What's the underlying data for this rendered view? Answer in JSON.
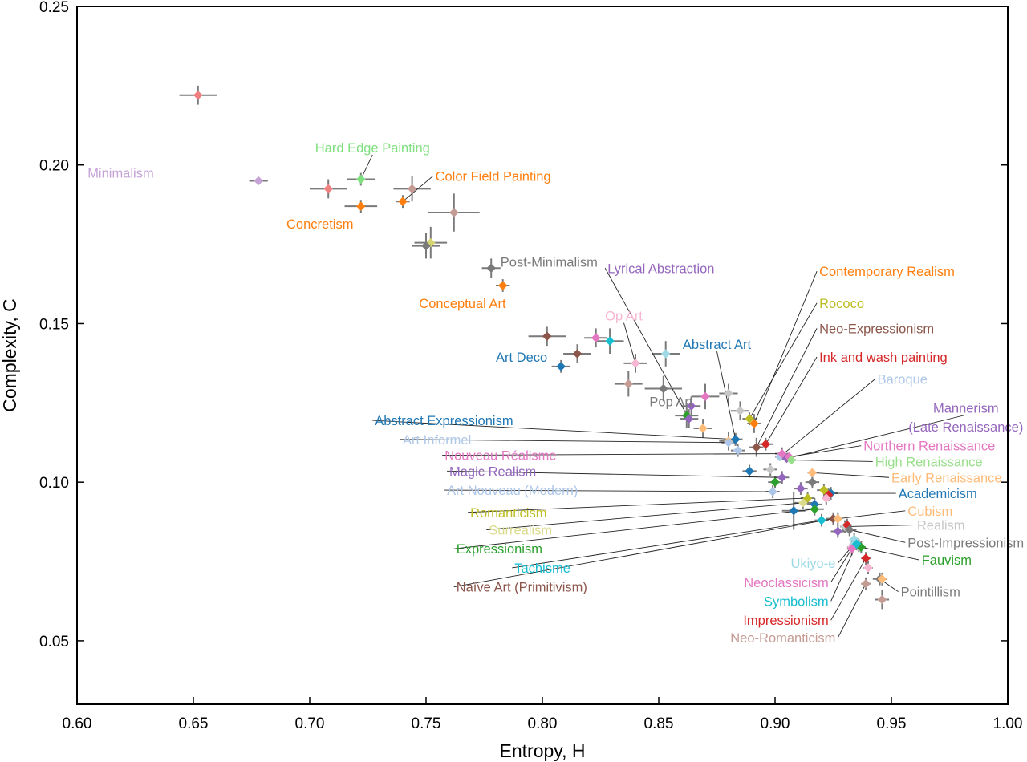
{
  "chart_data": {
    "type": "scatter",
    "title": "",
    "xlabel": "Entropy, H",
    "ylabel": "Complexity, C",
    "xlim": [
      0.6,
      1.0
    ],
    "ylim": [
      0.03,
      0.25
    ],
    "xticks": [
      "0.60",
      "0.65",
      "0.70",
      "0.75",
      "0.80",
      "0.85",
      "0.90",
      "0.95",
      "1.00"
    ],
    "yticks": [
      "0.05",
      "0.10",
      "0.15",
      "0.20",
      "0.25"
    ],
    "grid": false,
    "legend": "none",
    "points": [
      {
        "name": "",
        "x": 0.652,
        "y": 0.222,
        "ex": 0.008,
        "ey": 0.003,
        "color": "#f08080"
      },
      {
        "name": "Minimalism",
        "x": 0.678,
        "y": 0.195,
        "ex": 0.004,
        "ey": 0.001,
        "color": "#c5a3d6",
        "label": {
          "x": 0.633,
          "y": 0.1975,
          "dir": "left"
        }
      },
      {
        "name": "Hard Edge Painting",
        "x": 0.722,
        "y": 0.1955,
        "ex": 0.006,
        "ey": 0.002,
        "color": "#7fe07f",
        "label": {
          "x": 0.727,
          "y": 0.2055,
          "dir": "center"
        },
        "leader": true
      },
      {
        "name": "",
        "x": 0.708,
        "y": 0.1925,
        "ex": 0.008,
        "ey": 0.003,
        "color": "#f08080"
      },
      {
        "name": "",
        "x": 0.744,
        "y": 0.1925,
        "ex": 0.008,
        "ey": 0.004,
        "color": "#c49c94"
      },
      {
        "name": "Color Field Painting",
        "x": 0.74,
        "y": 0.1885,
        "ex": 0.003,
        "ey": 0.002,
        "color": "#ff7f0e",
        "label": {
          "x": 0.754,
          "y": 0.1965,
          "dir": "right"
        },
        "leader": true
      },
      {
        "name": "Concretism",
        "x": 0.722,
        "y": 0.187,
        "ex": 0.007,
        "ey": 0.002,
        "color": "#ff7f0e",
        "label": {
          "x": 0.69,
          "y": 0.1815,
          "dir": "right"
        }
      },
      {
        "name": "",
        "x": 0.762,
        "y": 0.185,
        "ex": 0.011,
        "ey": 0.006,
        "color": "#c49c94"
      },
      {
        "name": "",
        "x": 0.752,
        "y": 0.1755,
        "ex": 0.007,
        "ey": 0.005,
        "color": "#d4d470"
      },
      {
        "name": "",
        "x": 0.75,
        "y": 0.1745,
        "ex": 0.006,
        "ey": 0.004,
        "color": "#7a7a7a"
      },
      {
        "name": "Post-Minimalism",
        "x": 0.778,
        "y": 0.1675,
        "ex": 0.004,
        "ey": 0.003,
        "color": "#7a7a7a",
        "label": {
          "x": 0.782,
          "y": 0.1695,
          "dir": "right"
        }
      },
      {
        "name": "Conceptual Art",
        "x": 0.783,
        "y": 0.162,
        "ex": 0.003,
        "ey": 0.002,
        "color": "#ff7f0e",
        "label": {
          "x": 0.747,
          "y": 0.1565,
          "dir": "right"
        }
      },
      {
        "name": "",
        "x": 0.802,
        "y": 0.146,
        "ex": 0.008,
        "ey": 0.003,
        "color": "#8c564b"
      },
      {
        "name": "",
        "x": 0.823,
        "y": 0.1455,
        "ex": 0.005,
        "ey": 0.003,
        "color": "#e377c2"
      },
      {
        "name": "",
        "x": 0.829,
        "y": 0.1445,
        "ex": 0.006,
        "ey": 0.004,
        "color": "#17becf"
      },
      {
        "name": "",
        "x": 0.853,
        "y": 0.1405,
        "ex": 0.006,
        "ey": 0.004,
        "color": "#9edae5"
      },
      {
        "name": "",
        "x": 0.815,
        "y": 0.1405,
        "ex": 0.006,
        "ey": 0.003,
        "color": "#8c564b"
      },
      {
        "name": "Op Art",
        "x": 0.84,
        "y": 0.1375,
        "ex": 0.005,
        "ey": 0.003,
        "color": "#f7b6d2",
        "label": {
          "x": 0.835,
          "y": 0.1525,
          "dir": "center"
        },
        "leader": true
      },
      {
        "name": "Art Deco",
        "x": 0.808,
        "y": 0.1365,
        "ex": 0.004,
        "ey": 0.002,
        "color": "#1f77b4",
        "label": {
          "x": 0.78,
          "y": 0.1395,
          "dir": "right"
        }
      },
      {
        "name": "",
        "x": 0.837,
        "y": 0.131,
        "ex": 0.006,
        "ey": 0.004,
        "color": "#c49c94"
      },
      {
        "name": "Pop Art",
        "x": 0.852,
        "y": 0.1295,
        "ex": 0.008,
        "ey": 0.004,
        "color": "#7a7a7a",
        "label": {
          "x": 0.846,
          "y": 0.1255,
          "dir": "right"
        }
      },
      {
        "name": "",
        "x": 0.87,
        "y": 0.127,
        "ex": 0.006,
        "ey": 0.004,
        "color": "#e377c2"
      },
      {
        "name": "",
        "x": 0.88,
        "y": 0.128,
        "ex": 0.004,
        "ey": 0.003,
        "color": "#c7c7c7"
      },
      {
        "name": "",
        "x": 0.864,
        "y": 0.124,
        "ex": 0.004,
        "ey": 0.003,
        "color": "#9467bd"
      },
      {
        "name": "",
        "x": 0.885,
        "y": 0.1225,
        "ex": 0.004,
        "ey": 0.003,
        "color": "#c7c7c7"
      },
      {
        "name": "",
        "x": 0.862,
        "y": 0.121,
        "ex": 0.005,
        "ey": 0.004,
        "color": "#2ca02c"
      },
      {
        "name": "Lyrical Abstraction",
        "x": 0.863,
        "y": 0.12,
        "ex": 0.004,
        "ey": 0.003,
        "color": "#9467bd",
        "label": {
          "x": 0.828,
          "y": 0.1675,
          "dir": "right"
        },
        "leader": true
      },
      {
        "name": "Contemporary Realism",
        "x": 0.891,
        "y": 0.1185,
        "ex": 0.003,
        "ey": 0.003,
        "color": "#ff7f0e",
        "label": {
          "x": 0.919,
          "y": 0.1665,
          "dir": "right"
        },
        "leader": true
      },
      {
        "name": "Rococo",
        "x": 0.889,
        "y": 0.12,
        "ex": 0.003,
        "ey": 0.002,
        "color": "#bcbd22",
        "label": {
          "x": 0.919,
          "y": 0.1565,
          "dir": "right"
        },
        "leader": true
      },
      {
        "name": "",
        "x": 0.869,
        "y": 0.117,
        "ex": 0.004,
        "ey": 0.003,
        "color": "#ffbb78"
      },
      {
        "name": "Neo-Expressionism",
        "x": 0.892,
        "y": 0.111,
        "ex": 0.003,
        "ey": 0.003,
        "color": "#8c564b",
        "label": {
          "x": 0.919,
          "y": 0.1485,
          "dir": "right"
        },
        "leader": true
      },
      {
        "name": "Ink and wash painting",
        "x": 0.896,
        "y": 0.112,
        "ex": 0.003,
        "ey": 0.002,
        "color": "#d62728",
        "label": {
          "x": 0.919,
          "y": 0.1395,
          "dir": "right"
        },
        "leader": true
      },
      {
        "name": "Abstract Art",
        "x": 0.883,
        "y": 0.1135,
        "ex": 0.003,
        "ey": 0.002,
        "color": "#1f77b4",
        "label": {
          "x": 0.875,
          "y": 0.1435,
          "dir": "center"
        },
        "leader": true
      },
      {
        "name": "",
        "x": 0.88,
        "y": 0.113,
        "ex": 0.004,
        "ey": 0.003,
        "color": "#ffbb78"
      },
      {
        "name": "Baroque",
        "x": 0.902,
        "y": 0.108,
        "ex": 0.002,
        "ey": 0.001,
        "color": "#aec7e8",
        "label": {
          "x": 0.944,
          "y": 0.1325,
          "dir": "right"
        },
        "leader": true
      },
      {
        "name": "Mannerism",
        "x": 0.905,
        "y": 0.1075,
        "ex": 0.002,
        "ey": 0.001,
        "color": "#9467bd",
        "label": {
          "x": 0.982,
          "y": 0.1235,
          "dir": "center"
        },
        "leader": true,
        "label2": "(Late Renaissance)",
        "label2y": 0.1175
      },
      {
        "name": "Northern Renaissance",
        "x": 0.906,
        "y": 0.108,
        "ex": 0.002,
        "ey": 0.001,
        "color": "#e377c2",
        "label": {
          "x": 0.938,
          "y": 0.1115,
          "dir": "right"
        },
        "leader": true
      },
      {
        "name": "High Renaissance",
        "x": 0.907,
        "y": 0.107,
        "ex": 0.002,
        "ey": 0.001,
        "color": "#98df8a",
        "label": {
          "x": 0.943,
          "y": 0.1065,
          "dir": "right"
        },
        "leader": true
      },
      {
        "name": "Early Renaissance",
        "x": 0.916,
        "y": 0.103,
        "ex": 0.002,
        "ey": 0.001,
        "color": "#ffbb78",
        "label": {
          "x": 0.95,
          "y": 0.1015,
          "dir": "right"
        },
        "leader": true
      },
      {
        "name": "Abstract Expressionism",
        "x": 0.883,
        "y": 0.1135,
        "ex": 0.003,
        "ey": 0.002,
        "color": "#1f77b4",
        "label": {
          "x": 0.728,
          "y": 0.1195,
          "dir": "right"
        },
        "leader": true
      },
      {
        "name": "Art Informel",
        "x": 0.88,
        "y": 0.1125,
        "ex": 0.003,
        "ey": 0.002,
        "color": "#aec7e8",
        "label": {
          "x": 0.74,
          "y": 0.1135,
          "dir": "right"
        },
        "leader": true
      },
      {
        "name": "",
        "x": 0.884,
        "y": 0.11,
        "ex": 0.003,
        "ey": 0.002,
        "color": "#aec7e8"
      },
      {
        "name": "Nouveau Réalisme",
        "x": 0.903,
        "y": 0.109,
        "ex": 0.003,
        "ey": 0.002,
        "color": "#e377c2",
        "label": {
          "x": 0.758,
          "y": 0.1085,
          "dir": "right"
        },
        "leader": true
      },
      {
        "name": "Magic Realism",
        "x": 0.903,
        "y": 0.1015,
        "ex": 0.003,
        "ey": 0.002,
        "color": "#9467bd",
        "label": {
          "x": 0.76,
          "y": 0.1035,
          "dir": "right"
        },
        "leader": true
      },
      {
        "name": "",
        "x": 0.889,
        "y": 0.1035,
        "ex": 0.003,
        "ey": 0.002,
        "color": "#1f77b4"
      },
      {
        "name": "",
        "x": 0.898,
        "y": 0.104,
        "ex": 0.003,
        "ey": 0.002,
        "color": "#c7c7c7"
      },
      {
        "name": "",
        "x": 0.9,
        "y": 0.1,
        "ex": 0.003,
        "ey": 0.002,
        "color": "#2ca02c"
      },
      {
        "name": "Art Nouveau (Modern)",
        "x": 0.899,
        "y": 0.097,
        "ex": 0.003,
        "ey": 0.002,
        "color": "#aec7e8",
        "label": {
          "x": 0.759,
          "y": 0.0975,
          "dir": "right"
        },
        "leader": true
      },
      {
        "name": "",
        "x": 0.911,
        "y": 0.098,
        "ex": 0.003,
        "ey": 0.002,
        "color": "#9467bd"
      },
      {
        "name": "",
        "x": 0.916,
        "y": 0.1,
        "ex": 0.003,
        "ey": 0.002,
        "color": "#7a7a7a"
      },
      {
        "name": "Academicism",
        "x": 0.924,
        "y": 0.0965,
        "ex": 0.003,
        "ey": 0.002,
        "color": "#1f77b4",
        "label": {
          "x": 0.953,
          "y": 0.0965,
          "dir": "right"
        },
        "leader": true
      },
      {
        "name": "",
        "x": 0.921,
        "y": 0.0975,
        "ex": 0.003,
        "ey": 0.002,
        "color": "#bcbd22"
      },
      {
        "name": "",
        "x": 0.923,
        "y": 0.096,
        "ex": 0.002,
        "ey": 0.002,
        "color": "#d62728"
      },
      {
        "name": "",
        "x": 0.922,
        "y": 0.095,
        "ex": 0.002,
        "ey": 0.002,
        "color": "#f7b6d2"
      },
      {
        "name": "",
        "x": 0.917,
        "y": 0.093,
        "ex": 0.003,
        "ey": 0.002,
        "color": "#1f77b4"
      },
      {
        "name": "Romanticism",
        "x": 0.914,
        "y": 0.095,
        "ex": 0.003,
        "ey": 0.002,
        "color": "#bcbd22",
        "label": {
          "x": 0.769,
          "y": 0.0905,
          "dir": "right"
        },
        "leader": true
      },
      {
        "name": "Surrealism",
        "x": 0.912,
        "y": 0.0935,
        "ex": 0.004,
        "ey": 0.002,
        "color": "#dbdb8d",
        "label": {
          "x": 0.777,
          "y": 0.085,
          "dir": "right"
        },
        "leader": true
      },
      {
        "name": "Expressionism",
        "x": 0.917,
        "y": 0.0915,
        "ex": 0.004,
        "ey": 0.002,
        "color": "#2ca02c",
        "label": {
          "x": 0.763,
          "y": 0.079,
          "dir": "right"
        },
        "leader": true
      },
      {
        "name": "",
        "x": 0.908,
        "y": 0.091,
        "ex": 0.005,
        "ey": 0.006,
        "color": "#1f77b4"
      },
      {
        "name": "Tachisme",
        "x": 0.92,
        "y": 0.088,
        "ex": 0.003,
        "ey": 0.002,
        "color": "#17becf",
        "label": {
          "x": 0.788,
          "y": 0.073,
          "dir": "right"
        },
        "leader": true
      },
      {
        "name": "Naïve Art (Primitivism)",
        "x": 0.925,
        "y": 0.0885,
        "ex": 0.003,
        "ey": 0.002,
        "color": "#8c564b",
        "label": {
          "x": 0.763,
          "y": 0.067,
          "dir": "right"
        },
        "leader": true
      },
      {
        "name": "Cubism",
        "x": 0.927,
        "y": 0.0885,
        "ex": 0.002,
        "ey": 0.002,
        "color": "#ffbb78",
        "label": {
          "x": 0.957,
          "y": 0.091,
          "dir": "right"
        },
        "leader": true
      },
      {
        "name": "Realism",
        "x": 0.93,
        "y": 0.086,
        "ex": 0.002,
        "ey": 0.002,
        "color": "#c7c7c7",
        "label": {
          "x": 0.961,
          "y": 0.0865,
          "dir": "right"
        },
        "leader": true
      },
      {
        "name": "",
        "x": 0.931,
        "y": 0.0865,
        "ex": 0.002,
        "ey": 0.002,
        "color": "#d62728"
      },
      {
        "name": "Post-Impressionism",
        "x": 0.932,
        "y": 0.085,
        "ex": 0.003,
        "ey": 0.002,
        "color": "#7a7a7a",
        "label": {
          "x": 0.957,
          "y": 0.081,
          "dir": "right"
        },
        "leader": true
      },
      {
        "name": "",
        "x": 0.927,
        "y": 0.0845,
        "ex": 0.003,
        "ey": 0.002,
        "color": "#9467bd"
      },
      {
        "name": "",
        "x": 0.934,
        "y": 0.082,
        "ex": 0.002,
        "ey": 0.002,
        "color": "#9edae5"
      },
      {
        "name": "",
        "x": 0.936,
        "y": 0.08,
        "ex": 0.002,
        "ey": 0.002,
        "color": "#17becf"
      },
      {
        "name": "Fauvism",
        "x": 0.937,
        "y": 0.0795,
        "ex": 0.002,
        "ey": 0.002,
        "color": "#2ca02c",
        "label": {
          "x": 0.963,
          "y": 0.0755,
          "dir": "right"
        },
        "leader": true
      },
      {
        "name": "",
        "x": 0.933,
        "y": 0.0795,
        "ex": 0.002,
        "ey": 0.002,
        "color": "#f7b6d2"
      },
      {
        "name": "Ukiyo-e",
        "x": 0.934,
        "y": 0.0805,
        "ex": 0.002,
        "ey": 0.002,
        "color": "#9edae5",
        "label": {
          "x": 0.926,
          "y": 0.0745,
          "dir": "right-end"
        },
        "leader": true
      },
      {
        "name": "Neoclassicism",
        "x": 0.933,
        "y": 0.079,
        "ex": 0.002,
        "ey": 0.002,
        "color": "#e377c2",
        "label": {
          "x": 0.923,
          "y": 0.0685,
          "dir": "right-end"
        },
        "leader": true
      },
      {
        "name": "Symbolism",
        "x": 0.935,
        "y": 0.0805,
        "ex": 0.002,
        "ey": 0.002,
        "color": "#17becf",
        "label": {
          "x": 0.923,
          "y": 0.0625,
          "dir": "right-end"
        },
        "leader": true
      },
      {
        "name": "Impressionism",
        "x": 0.939,
        "y": 0.076,
        "ex": 0.002,
        "ey": 0.002,
        "color": "#d62728",
        "label": {
          "x": 0.923,
          "y": 0.0565,
          "dir": "right-end"
        },
        "leader": true
      },
      {
        "name": "Neo-Romanticism",
        "x": 0.939,
        "y": 0.068,
        "ex": 0.002,
        "ey": 0.002,
        "color": "#c49c94",
        "label": {
          "x": 0.926,
          "y": 0.051,
          "dir": "right-end"
        },
        "leader": true
      },
      {
        "name": "",
        "x": 0.94,
        "y": 0.073,
        "ex": 0.002,
        "ey": 0.002,
        "color": "#f7b6d2"
      },
      {
        "name": "Pointillism",
        "x": 0.945,
        "y": 0.0695,
        "ex": 0.003,
        "ey": 0.002,
        "color": "#7a7a7a",
        "label": {
          "x": 0.954,
          "y": 0.0655,
          "dir": "right"
        },
        "leader": true
      },
      {
        "name": "",
        "x": 0.946,
        "y": 0.0695,
        "ex": 0.002,
        "ey": 0.002,
        "color": "#ffbb78"
      },
      {
        "name": "",
        "x": 0.946,
        "y": 0.063,
        "ex": 0.003,
        "ey": 0.003,
        "color": "#c49c94"
      }
    ]
  }
}
